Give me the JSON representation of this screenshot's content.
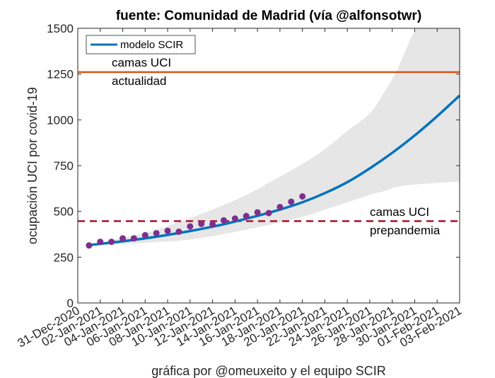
{
  "chart_data": {
    "type": "line",
    "title": "fuente: Comunidad de Madrid (vía @alfonsotwr)",
    "xlabel": "gráfica por @omeuxeito y el equipo SCIR",
    "ylabel": "ocupación UCI por covid-19",
    "ylim": [
      0,
      1500
    ],
    "yticks": [
      0,
      250,
      500,
      750,
      1000,
      1250,
      1500
    ],
    "xlim_days": [
      0,
      34
    ],
    "x_origin_date": "31-Dec-2020",
    "xticks": [
      {
        "day": 0,
        "label": "31-Dec-2020"
      },
      {
        "day": 2,
        "label": "02-Jan-2021"
      },
      {
        "day": 4,
        "label": "04-Jan-2021"
      },
      {
        "day": 6,
        "label": "06-Jan-2021"
      },
      {
        "day": 8,
        "label": "08-Jan-2021"
      },
      {
        "day": 10,
        "label": "10-Jan-2021"
      },
      {
        "day": 12,
        "label": "12-Jan-2021"
      },
      {
        "day": 14,
        "label": "14-Jan-2021"
      },
      {
        "day": 16,
        "label": "16-Jan-2021"
      },
      {
        "day": 18,
        "label": "18-Jan-2021"
      },
      {
        "day": 20,
        "label": "20-Jan-2021"
      },
      {
        "day": 22,
        "label": "22-Jan-2021"
      },
      {
        "day": 24,
        "label": "24-Jan-2021"
      },
      {
        "day": 26,
        "label": "26-Jan-2021"
      },
      {
        "day": 28,
        "label": "28-Jan-2021"
      },
      {
        "day": 30,
        "label": "30-Jan-2021"
      },
      {
        "day": 32,
        "label": "01-Feb-2021"
      },
      {
        "day": 34,
        "label": "03-Feb-2021"
      }
    ],
    "grid": false,
    "legend": {
      "placement": "top-left",
      "entries": [
        {
          "name": "modelo SCIR",
          "color": "#0072BD"
        }
      ]
    },
    "series": [
      {
        "name": "observed",
        "kind": "scatter",
        "color": "#7E2F8E",
        "x_days": [
          1,
          2,
          3,
          4,
          5,
          6,
          7,
          8,
          9,
          10,
          11,
          12,
          13,
          14,
          15,
          16,
          17,
          18,
          19,
          20
        ],
        "values": [
          314,
          334,
          334,
          353,
          353,
          370,
          381,
          394,
          389,
          418,
          432,
          430,
          451,
          461,
          475,
          495,
          491,
          524,
          553,
          582
        ]
      },
      {
        "name": "modelo SCIR",
        "kind": "line",
        "color": "#0072BD",
        "x_days": [
          1,
          4,
          7,
          10,
          13,
          16,
          18,
          20,
          22,
          24,
          26,
          28,
          30,
          32,
          34
        ],
        "values": [
          316,
          337,
          362,
          393,
          430,
          476,
          510,
          550,
          600,
          660,
          735,
          820,
          915,
          1020,
          1133
        ]
      },
      {
        "name": "intervalo",
        "kind": "band",
        "color": "#E6E6E6",
        "x_days": [
          1,
          4,
          7,
          9,
          12,
          15,
          18,
          20,
          22,
          24,
          26,
          27.3,
          28.5,
          30.2,
          32,
          34
        ],
        "upper": [
          316,
          355,
          400,
          443,
          510,
          590,
          690,
          760,
          840,
          940,
          1036,
          1152,
          1280,
          1500,
          1500,
          1500
        ],
        "lower": [
          316,
          322,
          332,
          340,
          365,
          400,
          440,
          470,
          510,
          550,
          590,
          612,
          635,
          648,
          656,
          662
        ]
      }
    ],
    "reference_lines": [
      {
        "name": "camas UCI actualidad",
        "value": 1261,
        "style": "solid",
        "color": "#D95319",
        "label_lines": [
          "camas UCI",
          "actualidad"
        ]
      },
      {
        "name": "camas UCI prepandemia",
        "value": 447,
        "style": "dashed",
        "color": "#A2142F",
        "label_lines": [
          "camas UCI",
          "prepandemia"
        ]
      }
    ]
  }
}
